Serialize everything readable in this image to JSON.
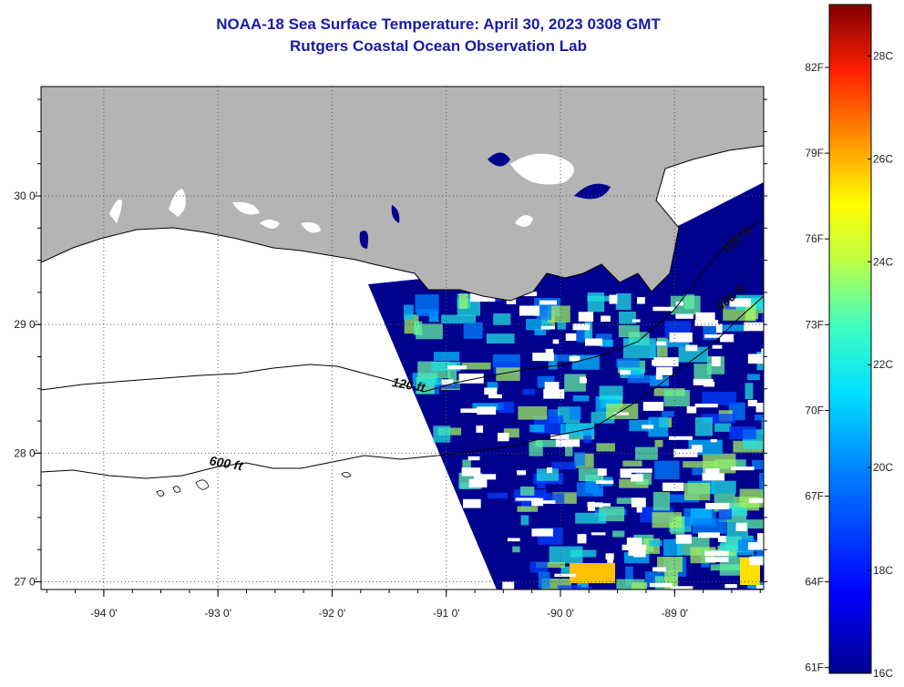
{
  "title": {
    "line1": "NOAA-18 Sea Surface Temperature:  April 30, 2023 0308 GMT",
    "line2": "Rutgers Coastal Ocean Observation Lab"
  },
  "map": {
    "lon_range": [
      -94.55,
      -88.22
    ],
    "lat_range": [
      26.94,
      30.85
    ],
    "lon_ticks": [
      {
        "value": -94,
        "label": "-94 0'"
      },
      {
        "value": -93,
        "label": "-93 0'"
      },
      {
        "value": -92,
        "label": "-92 0'"
      },
      {
        "value": -91,
        "label": "-91 0'"
      },
      {
        "value": -90,
        "label": "-90 0'"
      },
      {
        "value": -89,
        "label": "-89 0'"
      }
    ],
    "lat_ticks": [
      {
        "value": 27,
        "label": "27 0'"
      },
      {
        "value": 28,
        "label": "28 0'"
      },
      {
        "value": 29,
        "label": "29 0'"
      },
      {
        "value": 30,
        "label": "30 0'"
      }
    ],
    "contours": [
      {
        "label": "120 ft",
        "lon": -91.48,
        "lat": 28.52
      },
      {
        "label": "600 ft",
        "lon": -93.08,
        "lat": 27.91
      },
      {
        "label": "120 ft",
        "lon": -88.55,
        "lat": 29.55
      },
      {
        "label": "600 ft",
        "lon": -88.6,
        "lat": 29.1
      }
    ],
    "colors": {
      "land": "#b4b4b4",
      "ocean_cold": "#00008f",
      "cloud": "#ffffff",
      "coastline": "#000000"
    }
  },
  "colorbar": {
    "f_labels": [
      "82F",
      "79F",
      "76F",
      "73F",
      "70F",
      "67F",
      "64F",
      "61F"
    ],
    "c_labels": [
      "28C",
      "26C",
      "24C",
      "22C",
      "20C",
      "18C",
      "16C"
    ],
    "range_c": [
      16,
      29
    ]
  }
}
